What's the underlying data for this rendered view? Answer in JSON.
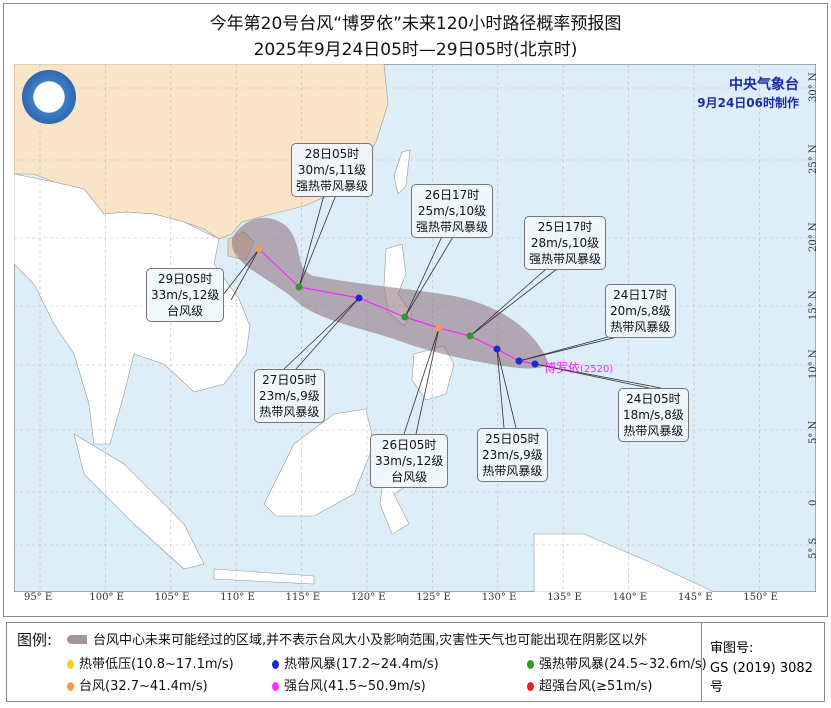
{
  "title": "今年第20号台风“博罗依”未来120小时路径概率预报图",
  "subtitle": "2025年9月24日05时—29日05时(北京时)",
  "agency": {
    "name": "中央气象台",
    "issued": "9月24日06时制作"
  },
  "typhoon": {
    "name": "博罗依",
    "code": "(2520)"
  },
  "colors": {
    "sea": "#ddeef9",
    "china": "#f9e4c8",
    "land": "#ffffff",
    "track": "#ff22ff",
    "cone": "#8a6e78",
    "td": "#f5d020",
    "ts": "#1a2ad0",
    "sts": "#2e9a2e",
    "ty": "#f59a50",
    "sty": "#ff30ff",
    "super": "#e82020"
  },
  "lon_labels": [
    "95° E",
    "100° E",
    "105° E",
    "110° E",
    "115° E",
    "120° E",
    "125° E",
    "130° E",
    "135° E",
    "140° E",
    "145° E",
    "150° E"
  ],
  "lat_labels": [
    "30° N",
    "25° N",
    "20° N",
    "15° N",
    "10° N",
    "5° N",
    "0",
    "5° S"
  ],
  "forecasts": [
    {
      "time": "24日05时",
      "wind": "18m/s,8级",
      "level": "热带风暴级",
      "cat": "ts"
    },
    {
      "time": "24日17时",
      "wind": "20m/s,8级",
      "level": "热带风暴级",
      "cat": "ts"
    },
    {
      "time": "25日05时",
      "wind": "23m/s,9级",
      "level": "热带风暴级",
      "cat": "ts"
    },
    {
      "time": "25日17时",
      "wind": "28m/s,10级",
      "level": "强热带风暴级",
      "cat": "sts"
    },
    {
      "time": "26日05时",
      "wind": "33m/s,12级",
      "level": "台风级",
      "cat": "ty"
    },
    {
      "time": "26日17时",
      "wind": "25m/s,10级",
      "level": "强热带风暴级",
      "cat": "sts"
    },
    {
      "time": "27日05时",
      "wind": "23m/s,9级",
      "level": "热带风暴级",
      "cat": "ts"
    },
    {
      "time": "28日05时",
      "wind": "30m/s,11级",
      "level": "强热带风暴级",
      "cat": "sts"
    },
    {
      "time": "29日05时",
      "wind": "33m/s,12级",
      "level": "台风级",
      "cat": "ty"
    }
  ],
  "legend": {
    "title": "图例:",
    "cone": "台风中心未来可能经过的区域,并不表示台风大小及影响范围,灾害性天气也可能出现在阴影区以外",
    "items": [
      "热带低压(10.8~17.1m/s)",
      "热带风暴(17.2~24.4m/s)",
      "强热带风暴(24.5~32.6m/s)",
      "台风(32.7~41.4m/s)",
      "强台风(41.5~50.9m/s)",
      "超强台风(≥51m/s)"
    ],
    "review_label": "审图号:",
    "review_no": "GS (2019) 3082号"
  }
}
